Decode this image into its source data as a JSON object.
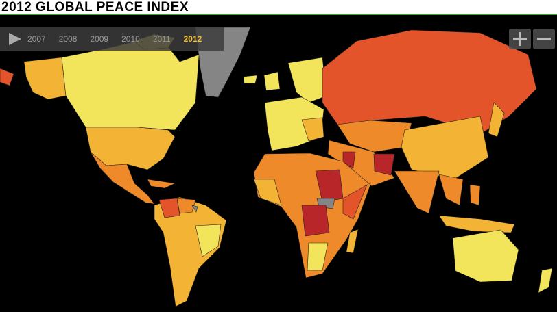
{
  "header": {
    "title": "2012 GLOBAL PEACE INDEX"
  },
  "timeline": {
    "years": [
      "2007",
      "2008",
      "2009",
      "2010",
      "2011",
      "2012"
    ]
  }
}
